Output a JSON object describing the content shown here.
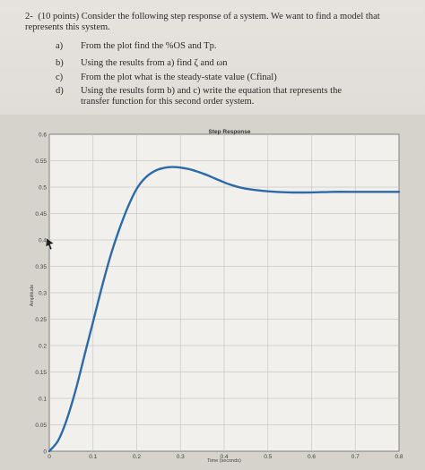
{
  "question": {
    "number": "2-",
    "text": "(10 points) Consider the following step response of a system. We want to find a model that represents this system.",
    "items": [
      {
        "letter": "a)",
        "text": "From the plot find the %OS and Tp."
      },
      {
        "letter": "b)",
        "text": "Using the results from a) find ζ and ωn"
      },
      {
        "letter": "c)",
        "text": "From the plot what is the steady-state value (Cfinal)"
      },
      {
        "letter": "d)",
        "text": "Using the results form b) and c) write the equation that represents the transfer function for this second order system."
      }
    ]
  },
  "chart_data": {
    "type": "line",
    "title": "Step Response",
    "xlabel": "Time (seconds)",
    "ylabel": "Amplitude",
    "xlim": [
      0,
      0.8
    ],
    "ylim": [
      0,
      0.6
    ],
    "xticks": [
      "0",
      "0.1",
      "0.2",
      "0.3",
      "0.4",
      "0.5",
      "0.6",
      "0.7",
      "0.8"
    ],
    "yticks": [
      "0",
      "0.05",
      "0.1",
      "0.15",
      "0.2",
      "0.25",
      "0.3",
      "0.35",
      "0.4",
      "0.45",
      "0.5",
      "0.55",
      "0.6"
    ],
    "grid": true,
    "line_color": "#2d6aa8",
    "series": [
      {
        "x": [
          0,
          0.02,
          0.04,
          0.06,
          0.08,
          0.1,
          0.12,
          0.14,
          0.16,
          0.18,
          0.2,
          0.22,
          0.24,
          0.26,
          0.28,
          0.3,
          0.32,
          0.34,
          0.36,
          0.38,
          0.4,
          0.42,
          0.45,
          0.5,
          0.55,
          0.6,
          0.65,
          0.7,
          0.75,
          0.8
        ],
        "y": [
          0,
          0.02,
          0.06,
          0.115,
          0.18,
          0.245,
          0.31,
          0.37,
          0.42,
          0.463,
          0.497,
          0.518,
          0.53,
          0.536,
          0.538,
          0.537,
          0.534,
          0.529,
          0.523,
          0.516,
          0.509,
          0.503,
          0.497,
          0.492,
          0.49,
          0.49,
          0.491,
          0.491,
          0.491,
          0.491
        ]
      }
    ]
  }
}
